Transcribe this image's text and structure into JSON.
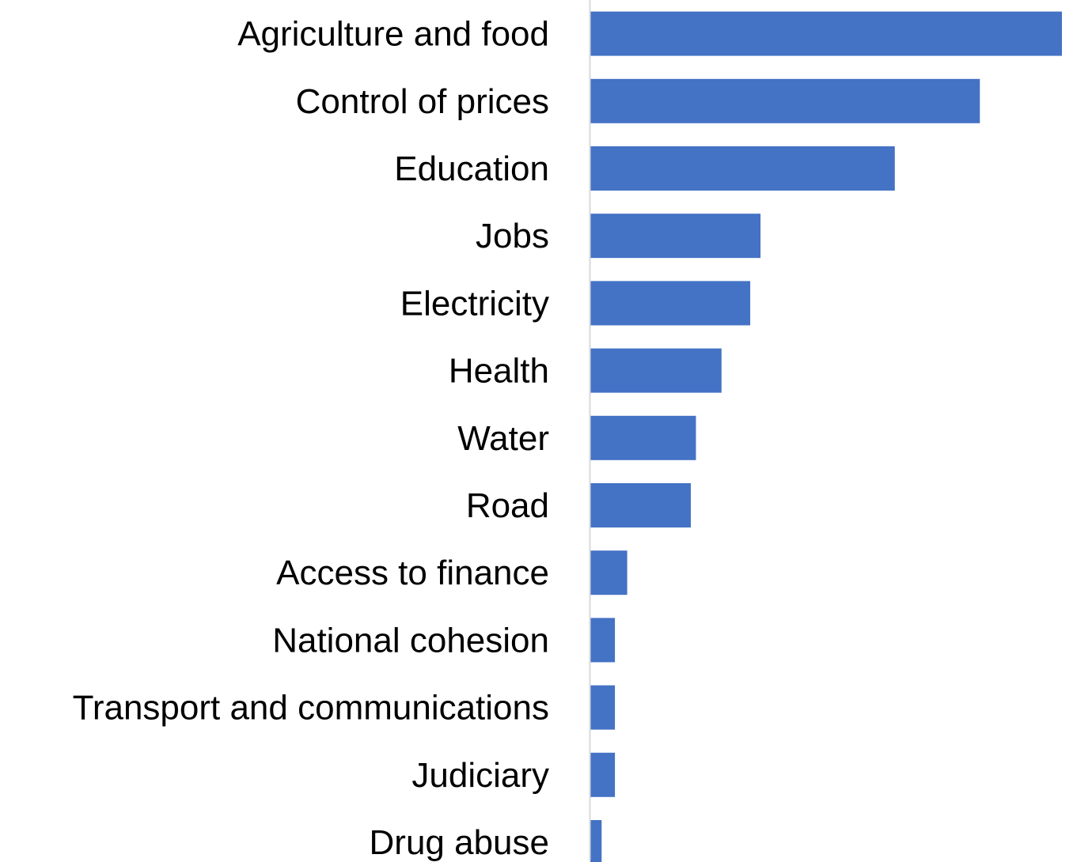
{
  "chart_data": {
    "type": "bar",
    "orientation": "horizontal",
    "categories": [
      "Agriculture and food",
      "Control of prices",
      "Education",
      "Jobs",
      "Electricity",
      "Health",
      "Water",
      "Road",
      "Access to finance",
      "National cohesion",
      "Transport and communications",
      "Judiciary",
      "Drug abuse"
    ],
    "values": [
      46,
      38,
      29.7,
      16.6,
      15.6,
      12.8,
      10.3,
      9.8,
      3.6,
      2.4,
      2.4,
      2.4,
      1.1
    ],
    "xlim": [
      0,
      46
    ],
    "title": "",
    "xlabel": "",
    "ylabel": "",
    "grid": false,
    "legend": "none",
    "bar_color": "#4472C4",
    "axis_color": "#D9D9D9"
  }
}
